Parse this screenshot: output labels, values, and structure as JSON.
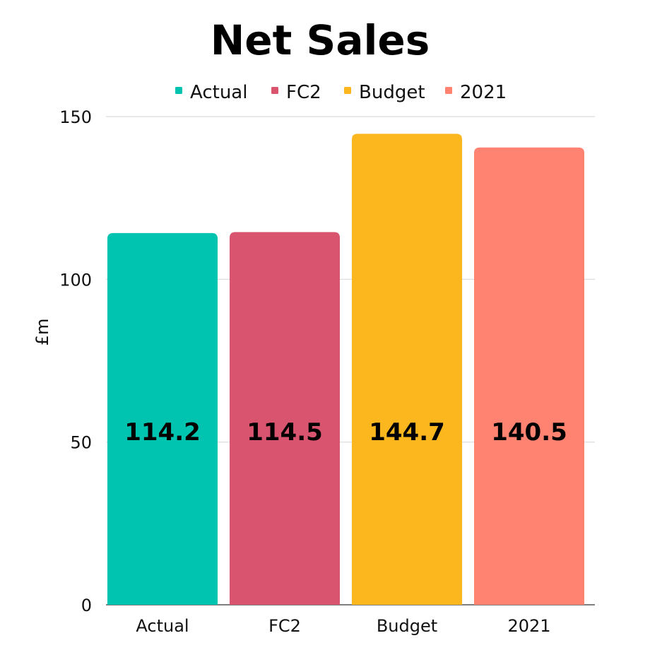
{
  "chart_data": {
    "type": "bar",
    "title": "Net Sales",
    "xlabel": "",
    "ylabel": "£m",
    "ylim": [
      0,
      150
    ],
    "yticks": [
      0,
      50,
      100,
      150
    ],
    "grid": true,
    "legend_position": "top",
    "categories": [
      "Actual",
      "FC2",
      "Budget",
      "2021"
    ],
    "values": [
      114.2,
      114.5,
      144.7,
      140.5
    ],
    "value_labels": [
      "114.2",
      "114.5",
      "144.7",
      "140.5"
    ],
    "colors": [
      "#00C4B0",
      "#D9546F",
      "#FDB71E",
      "#FF8370"
    ],
    "legend": [
      "Actual",
      "FC2",
      "Budget",
      "2021"
    ]
  }
}
